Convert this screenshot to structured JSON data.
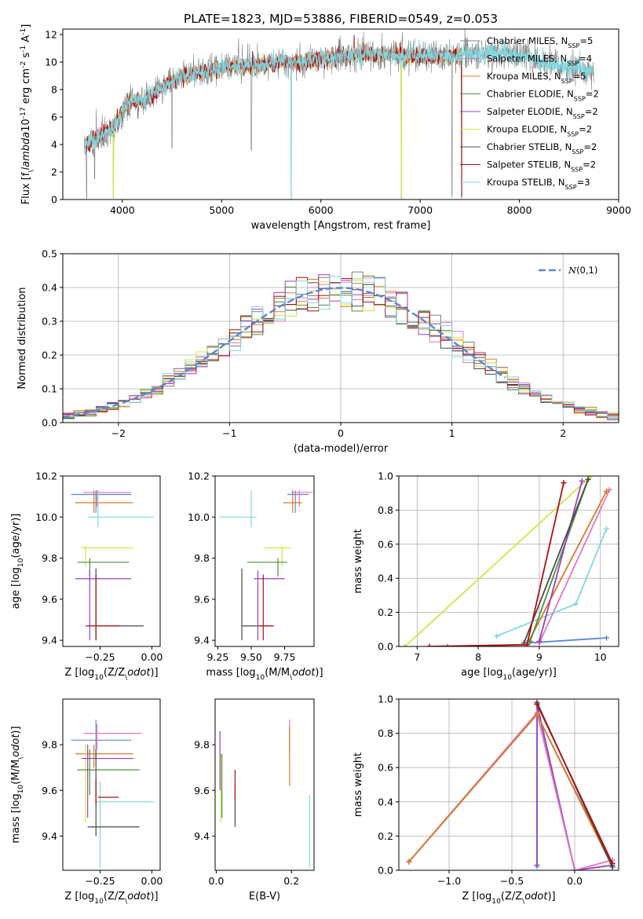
{
  "figure_title": "PLATE=1823, MJD=53886, FIBERID=0549, z=0.053",
  "colors": {
    "chabrier_miles": "#7f7f7f",
    "salpeter_miles": "#e377c2",
    "kroupa_miles": "#d97b27",
    "chabrier_elodie": "#4f8f3f",
    "salpeter_elodie": "#9a3fc4",
    "kroupa_elodie": "#d4e542",
    "chabrier_stelib": "#4a4a4a",
    "salpeter_stelib": "#b01010",
    "kroupa_stelib": "#80d8e0",
    "gauss": "#5b87d6",
    "extra_blue": "#5b87d6"
  },
  "chart_data": [
    {
      "id": "spectrum",
      "type": "line",
      "xlabel": "wavelength [Angstrom, rest frame]",
      "ylabel": "Flux [f$_\\lambda$10$^{-17}$ erg cm$^{-2}$ s$^{-1}$ A$^{-1}$]",
      "xlim": [
        3400,
        9000
      ],
      "ylim": [
        0,
        12.4
      ],
      "xticks": [
        4000,
        5000,
        6000,
        7000,
        8000,
        9000
      ],
      "yticks": [
        0,
        2,
        4,
        6,
        8,
        10,
        12
      ],
      "legend_position": "right",
      "legend": [
        {
          "name": "Chabrier MILES, N",
          "sub": "SSP",
          "suffix": "=5",
          "color": "#7f7f7f"
        },
        {
          "name": "Salpeter MILES, N",
          "sub": "SSP",
          "suffix": "=4",
          "color": "#e377c2"
        },
        {
          "name": "Kroupa MILES, N",
          "sub": "SSP",
          "suffix": "=5",
          "color": "#d97b27"
        },
        {
          "name": "Chabrier ELODIE, N",
          "sub": "SSP",
          "suffix": "=2",
          "color": "#4f8f3f"
        },
        {
          "name": "Salpeter ELODIE, N",
          "sub": "SSP",
          "suffix": "=2",
          "color": "#9a3fc4"
        },
        {
          "name": "Kroupa ELODIE, N",
          "sub": "SSP",
          "suffix": "=2",
          "color": "#d4e542"
        },
        {
          "name": "Chabrier STELIB, N",
          "sub": "SSP",
          "suffix": "=2",
          "color": "#4a4a4a"
        },
        {
          "name": "Salpeter STELIB, N",
          "sub": "SSP",
          "suffix": "=2",
          "color": "#b01010"
        },
        {
          "name": "Kroupa STELIB, N",
          "sub": "SSP",
          "suffix": "=3",
          "color": "#80d8e0"
        }
      ],
      "continuum": {
        "x": [
          3620,
          3700,
          3800,
          3900,
          4000,
          4100,
          4200,
          4300,
          4400,
          4500,
          4600,
          4700,
          4800,
          4900,
          5000,
          5200,
          5400,
          5600,
          5800,
          6000,
          6200,
          6400,
          6600,
          6800,
          7000,
          7200,
          7400,
          7600,
          7800,
          8000,
          8200,
          8400,
          8600,
          8750
        ],
        "y": [
          4.3,
          4.6,
          5.0,
          5.4,
          6.6,
          7.2,
          7.2,
          7.6,
          8.1,
          8.6,
          8.9,
          9.2,
          9.3,
          9.4,
          9.6,
          9.7,
          9.8,
          10.0,
          10.0,
          10.2,
          10.4,
          10.5,
          10.6,
          10.5,
          10.5,
          10.4,
          10.5,
          10.6,
          10.7,
          10.5,
          10.1,
          9.8,
          9.5,
          9.3
        ]
      },
      "series_ranges": {
        "gray_data": [
          3620,
          8750
        ],
        "models_red": [
          3620,
          7420
        ],
        "models_cyan": [
          3620,
          8750
        ]
      },
      "absorption_dips": [
        {
          "x": 3640,
          "y": 0.0
        },
        {
          "x": 3720,
          "y": 1.4
        },
        {
          "x": 3910,
          "y": 0.0
        },
        {
          "x": 4500,
          "y": 3.6
        },
        {
          "x": 5300,
          "y": 3.4
        },
        {
          "x": 5700,
          "y": 0.0
        },
        {
          "x": 6810,
          "y": 0.0
        },
        {
          "x": 7320,
          "y": 0.0
        },
        {
          "x": 7420,
          "y": 0.0
        }
      ]
    },
    {
      "id": "residuals",
      "type": "histogram",
      "xlabel": "(data-model)/error",
      "ylabel": "Normed distribution",
      "xlim": [
        -2.5,
        2.5
      ],
      "ylim": [
        0,
        0.5
      ],
      "xticks": [
        -2,
        -1,
        0,
        1,
        2
      ],
      "yticks": [
        0.0,
        0.1,
        0.2,
        0.3,
        0.4,
        0.5
      ],
      "bin_width": 0.1,
      "grid": true,
      "legend_position": "top-right",
      "legend": [
        {
          "name": "N(0,1)",
          "color": "#5b87d6"
        }
      ],
      "gauss_range": [
        -2.5,
        1.5
      ]
    },
    {
      "id": "age_vs_Z",
      "type": "errorbar",
      "xlabel": "Z [log$_{10}$(Z/Z$_\\odot$)]",
      "ylabel": "age  [log$_{10}$(age/yr)]",
      "xlim": [
        -0.43,
        0.04
      ],
      "ylim": [
        9.37,
        10.2
      ],
      "xticks": [
        -0.25,
        0.0
      ],
      "yticks": [
        9.4,
        9.6,
        9.8,
        10.0,
        10.2
      ],
      "points": [
        {
          "x": -0.27,
          "y": 10.11,
          "xl": -0.39,
          "xh": -0.1,
          "yl": 10.02,
          "yh": 10.13,
          "c": "#5b87d6"
        },
        {
          "x": -0.265,
          "y": 10.12,
          "xl": -0.33,
          "xh": -0.1,
          "yl": 10.05,
          "yh": 10.13,
          "c": "#e377c2"
        },
        {
          "x": -0.28,
          "y": 10.07,
          "xl": -0.37,
          "xh": -0.09,
          "yl": 10.02,
          "yh": 10.13,
          "c": "#d97b27"
        },
        {
          "x": -0.26,
          "y": 10.0,
          "xl": -0.31,
          "xh": 0.01,
          "yl": 9.95,
          "yh": 10.13,
          "c": "#80d8e0"
        },
        {
          "x": -0.32,
          "y": 9.85,
          "xl": -0.34,
          "xh": -0.09,
          "yl": 9.76,
          "yh": 9.86,
          "c": "#d4e542"
        },
        {
          "x": -0.3,
          "y": 9.78,
          "xl": -0.36,
          "xh": -0.11,
          "yl": 9.71,
          "yh": 9.8,
          "c": "#4f8f3f"
        },
        {
          "x": -0.3,
          "y": 9.7,
          "xl": -0.37,
          "xh": -0.1,
          "yl": 9.4,
          "yh": 9.74,
          "c": "#9a3fc4"
        },
        {
          "x": -0.27,
          "y": 9.47,
          "xl": -0.3,
          "xh": -0.04,
          "yl": 9.4,
          "yh": 9.75,
          "c": "#4a4a4a"
        },
        {
          "x": -0.27,
          "y": 9.47,
          "xl": -0.32,
          "xh": -0.15,
          "yl": 9.4,
          "yh": 9.72,
          "c": "#b01010"
        }
      ]
    },
    {
      "id": "age_vs_mass",
      "type": "errorbar",
      "xlabel": "mass [log$_{10}$(M/M$_\\odot$)]",
      "ylabel": "",
      "xlim": [
        9.23,
        9.97
      ],
      "ylim": [
        9.37,
        10.2
      ],
      "xticks": [
        9.25,
        9.5,
        9.75
      ],
      "yticks": [
        9.4,
        9.6,
        9.8,
        10.0,
        10.2
      ],
      "points": [
        {
          "x": 9.83,
          "y": 10.11,
          "xl": 9.77,
          "xh": 9.93,
          "yl": 10.02,
          "yh": 10.13,
          "c": "#5b87d6"
        },
        {
          "x": 9.86,
          "y": 10.12,
          "xl": 9.8,
          "xh": 9.96,
          "yl": 10.05,
          "yh": 10.13,
          "c": "#e377c2"
        },
        {
          "x": 9.81,
          "y": 10.07,
          "xl": 9.74,
          "xh": 9.88,
          "yl": 10.02,
          "yh": 10.13,
          "c": "#d97b27"
        },
        {
          "x": 9.5,
          "y": 10.0,
          "xl": 9.26,
          "xh": 9.54,
          "yl": 9.95,
          "yh": 10.13,
          "c": "#80d8e0"
        },
        {
          "x": 9.73,
          "y": 9.85,
          "xl": 9.6,
          "xh": 9.79,
          "yl": 9.76,
          "yh": 9.86,
          "c": "#d4e542"
        },
        {
          "x": 9.7,
          "y": 9.78,
          "xl": 9.47,
          "xh": 9.77,
          "yl": 9.71,
          "yh": 9.8,
          "c": "#4f8f3f"
        },
        {
          "x": 9.55,
          "y": 9.7,
          "xl": 9.52,
          "xh": 9.75,
          "yl": 9.4,
          "yh": 9.74,
          "c": "#9a3fc4"
        },
        {
          "x": 9.43,
          "y": 9.47,
          "xl": 9.43,
          "xh": 9.65,
          "yl": 9.4,
          "yh": 9.75,
          "c": "#4a4a4a"
        },
        {
          "x": 9.59,
          "y": 9.47,
          "xl": 9.56,
          "xh": 9.67,
          "yl": 9.4,
          "yh": 9.72,
          "c": "#b01010"
        }
      ]
    },
    {
      "id": "massweight_vs_age",
      "type": "line",
      "xlabel": "age  [log$_{10}$(age/yr)]",
      "ylabel": "mass weight",
      "xlim": [
        6.7,
        10.3
      ],
      "ylim": [
        0,
        1.0
      ],
      "xticks": [
        7,
        8,
        9,
        10
      ],
      "yticks": [
        0.0,
        0.2,
        0.4,
        0.6,
        0.8,
        1.0
      ],
      "grid": true,
      "series": [
        {
          "c": "#d4e542",
          "x": [
            6.8,
            9.85
          ],
          "y": [
            0.0,
            1.0
          ]
        },
        {
          "c": "#80d8e0",
          "x": [
            8.3,
            9.6,
            10.1
          ],
          "y": [
            0.06,
            0.25,
            0.69
          ]
        },
        {
          "c": "#5b87d6",
          "x": [
            8.8,
            10.1
          ],
          "y": [
            0.02,
            0.05
          ]
        },
        {
          "c": "#e377c2",
          "x": [
            9.0,
            10.15
          ],
          "y": [
            0.02,
            0.92
          ]
        },
        {
          "c": "#d97b27",
          "x": [
            7.5,
            8.8,
            10.1
          ],
          "y": [
            0.0,
            0.01,
            0.91
          ]
        },
        {
          "c": "#4f8f3f",
          "x": [
            8.85,
            9.8
          ],
          "y": [
            0.03,
            0.98
          ]
        },
        {
          "c": "#9a3fc4",
          "x": [
            9.0,
            9.7
          ],
          "y": [
            0.03,
            0.97
          ]
        },
        {
          "c": "#4a4a4a",
          "x": [
            8.75,
            9.8
          ],
          "y": [
            0.02,
            0.98
          ]
        },
        {
          "c": "#b01010",
          "x": [
            7.2,
            8.8,
            9.4
          ],
          "y": [
            0.0,
            0.01,
            0.96
          ]
        }
      ]
    },
    {
      "id": "mass_vs_Z",
      "type": "errorbar",
      "xlabel": "Z [log$_{10}$(Z/Z$_\\odot$)]",
      "ylabel": "mass [log$_{10}$(M/M$_\\odot$)]",
      "xlim": [
        -0.43,
        0.04
      ],
      "ylim": [
        9.25,
        10.0
      ],
      "xticks": [
        -0.25,
        0.0
      ],
      "yticks": [
        9.4,
        9.6,
        9.8
      ],
      "points": [
        {
          "x": -0.27,
          "y": 9.82,
          "xl": -0.39,
          "xh": -0.1,
          "yl": 9.74,
          "yh": 9.91,
          "c": "#5b87d6"
        },
        {
          "x": -0.265,
          "y": 9.85,
          "xl": -0.33,
          "xh": -0.05,
          "yl": 9.78,
          "yh": 9.89,
          "c": "#e377c2"
        },
        {
          "x": -0.28,
          "y": 9.76,
          "xl": -0.37,
          "xh": -0.09,
          "yl": 9.7,
          "yh": 9.8,
          "c": "#d97b27"
        },
        {
          "x": -0.25,
          "y": 9.55,
          "xl": -0.27,
          "xh": 0.01,
          "yl": 9.26,
          "yh": 9.64,
          "c": "#80d8e0"
        },
        {
          "x": -0.32,
          "y": 9.74,
          "xl": -0.34,
          "xh": -0.08,
          "yl": 9.46,
          "yh": 9.8,
          "c": "#d4e542"
        },
        {
          "x": -0.3,
          "y": 9.69,
          "xl": -0.36,
          "xh": -0.06,
          "yl": 9.58,
          "yh": 9.78,
          "c": "#4f8f3f"
        },
        {
          "x": -0.31,
          "y": 9.74,
          "xl": -0.34,
          "xh": -0.09,
          "yl": 9.48,
          "yh": 9.8,
          "c": "#9a3fc4"
        },
        {
          "x": -0.27,
          "y": 9.44,
          "xl": -0.31,
          "xh": -0.06,
          "yl": 9.4,
          "yh": 9.78,
          "c": "#4a4a4a"
        },
        {
          "x": -0.27,
          "y": 9.57,
          "xl": -0.26,
          "xh": -0.16,
          "yl": 9.54,
          "yh": 9.65,
          "c": "#b01010"
        }
      ]
    },
    {
      "id": "mass_vs_EBV",
      "type": "errorbar",
      "xlabel": "E(B-V)",
      "ylabel": "",
      "xlim": [
        -0.003,
        0.26
      ],
      "ylim": [
        9.25,
        10.0
      ],
      "xticks": [
        0.0,
        0.2
      ],
      "yticks": [
        9.4,
        9.6,
        9.8
      ],
      "points": [
        {
          "x": 0.195,
          "y": 9.82,
          "xl": 0.195,
          "xh": 0.195,
          "yl": 9.76,
          "yh": 9.91,
          "c": "#e377c2"
        },
        {
          "x": 0.195,
          "y": 9.78,
          "xl": 0.195,
          "xh": 0.195,
          "yl": 9.62,
          "yh": 9.88,
          "c": "#d97b27"
        },
        {
          "x": 0.248,
          "y": 9.45,
          "xl": 0.248,
          "xh": 0.248,
          "yl": 9.26,
          "yh": 9.58,
          "c": "#80d8e0"
        },
        {
          "x": 0.012,
          "y": 9.6,
          "xl": 0.012,
          "xh": 0.012,
          "yl": 9.46,
          "yh": 9.76,
          "c": "#d4e542"
        },
        {
          "x": 0.015,
          "y": 9.62,
          "xl": 0.015,
          "xh": 0.015,
          "yl": 9.48,
          "yh": 9.76,
          "c": "#4f8f3f"
        },
        {
          "x": 0.01,
          "y": 9.76,
          "xl": 0.01,
          "xh": 0.01,
          "yl": 9.6,
          "yh": 9.86,
          "c": "#9a3fc4"
        },
        {
          "x": 0.05,
          "y": 9.55,
          "xl": 0.05,
          "xh": 0.05,
          "yl": 9.44,
          "yh": 9.62,
          "c": "#4a4a4a"
        },
        {
          "x": 0.05,
          "y": 9.62,
          "xl": 0.05,
          "xh": 0.05,
          "yl": 9.56,
          "yh": 9.69,
          "c": "#b01010"
        }
      ]
    },
    {
      "id": "massweight_vs_Z",
      "type": "line",
      "xlabel": "Z [log$_{10}$(Z/Z$_\\odot$)]",
      "ylabel": "mass weight",
      "xlim": [
        -1.4,
        0.35
      ],
      "ylim": [
        0,
        1.0
      ],
      "xticks": [
        -1.0,
        -0.5,
        0.0
      ],
      "yticks": [
        0.0,
        0.2,
        0.4,
        0.6,
        0.8,
        1.0
      ],
      "grid": true,
      "series": [
        {
          "c": "#80d8e0",
          "x": [
            -0.3,
            -0.3
          ],
          "y": [
            0.02,
            0.92
          ]
        },
        {
          "c": "#d4e542",
          "x": [
            -0.3,
            0.0
          ],
          "y": [
            0.97,
            0.0
          ]
        },
        {
          "c": "#4f8f3f",
          "x": [
            -0.3,
            0.0
          ],
          "y": [
            0.97,
            0.0
          ]
        },
        {
          "c": "#9a3fc4",
          "x": [
            -0.3,
            -0.3,
            0.0,
            0.3
          ],
          "y": [
            0.03,
            0.97,
            0.0,
            0.03
          ]
        },
        {
          "c": "#5b87d6",
          "x": [
            -1.32,
            -0.3,
            0.3
          ],
          "y": [
            0.05,
            0.91,
            0.03
          ]
        },
        {
          "c": "#e377c2",
          "x": [
            -1.32,
            -0.3,
            0.0,
            0.3
          ],
          "y": [
            0.05,
            0.92,
            0.0,
            0.06
          ]
        },
        {
          "c": "#d97b27",
          "x": [
            -1.32,
            -0.3,
            0.3
          ],
          "y": [
            0.05,
            0.91,
            0.02
          ]
        },
        {
          "c": "#4a4a4a",
          "x": [
            -0.3,
            0.3
          ],
          "y": [
            0.98,
            0.02
          ]
        },
        {
          "c": "#b01010",
          "x": [
            -0.3,
            0.3
          ],
          "y": [
            0.97,
            0.04
          ]
        }
      ]
    }
  ]
}
